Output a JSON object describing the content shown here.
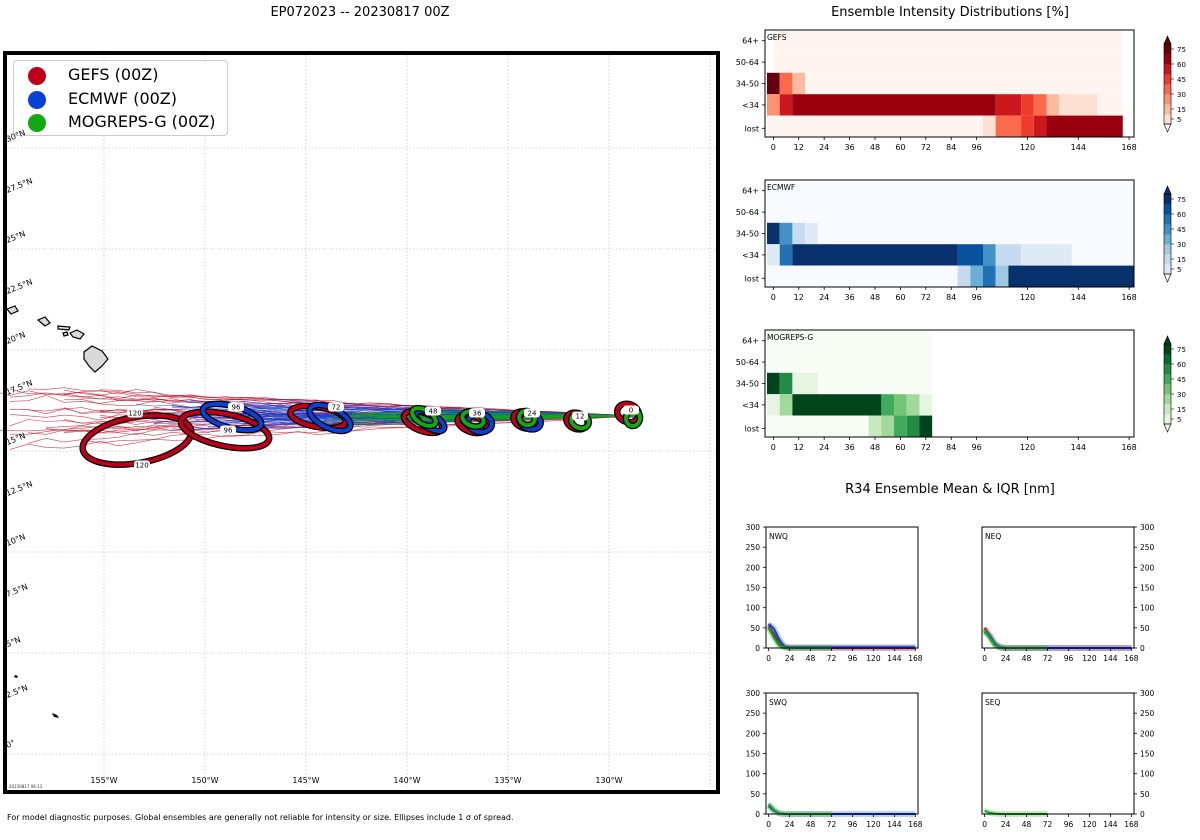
{
  "map": {
    "title": "EP072023 -- 20230817 00Z",
    "legend": [
      {
        "label": "GEFS (00Z)",
        "color": "#c0001a"
      },
      {
        "label": "ECMWF (00Z)",
        "color": "#0a3fd8"
      },
      {
        "label": "MOGREPS-G (00Z)",
        "color": "#12a812"
      }
    ],
    "lon_labels": [
      "155°W",
      "150°W",
      "145°W",
      "140°W",
      "135°W",
      "130°W"
    ],
    "lat_labels": [
      "30°N",
      "27.5°N",
      "25°N",
      "22.5°N",
      "20°N",
      "17.5°N",
      "15°N",
      "12.5°N",
      "10°N",
      "7.5°N",
      "5°N",
      "2.5°N",
      "0°"
    ],
    "stamp": "20230817 08:13",
    "footnote": "For model diagnostic purposes. Global ensembles are generally not reliable for intensity or size. Ellipses include 1 σ of spread.",
    "ellipse_labels": [
      "120",
      "120",
      "96",
      "96",
      "72",
      "48",
      "36",
      "24",
      "12",
      "0"
    ]
  },
  "intensity": {
    "title": "Ensemble Intensity Distributions [%]",
    "y_categories": [
      "64+",
      "50-64",
      "34-50",
      "<34",
      "lost"
    ],
    "x_ticks": [
      "0",
      "12",
      "24",
      "36",
      "48",
      "60",
      "72",
      "84",
      "96",
      "120",
      "144",
      "168"
    ],
    "colorbar_ticks": [
      "5",
      "15",
      "30",
      "45",
      "60",
      "75"
    ],
    "panels": [
      {
        "name": "GEFS",
        "palette": "red",
        "base": "#fff5f0",
        "colors": [
          "#fff5f0",
          "#fee0d2",
          "#fcbba1",
          "#fc9272",
          "#fb6a4a",
          "#ef3b2c",
          "#cb181d",
          "#99000d",
          "#67000d"
        ]
      },
      {
        "name": "ECMWF",
        "palette": "blue",
        "base": "#f7fbff",
        "colors": [
          "#f7fbff",
          "#deebf7",
          "#c6dbef",
          "#9ecae1",
          "#6baed6",
          "#4292c6",
          "#2171b5",
          "#08519c",
          "#08306b"
        ]
      },
      {
        "name": "MOGREPS-G",
        "palette": "green",
        "base": "#f7fcf5",
        "colors": [
          "#f7fcf5",
          "#e5f5e0",
          "#c7e9c0",
          "#a1d99b",
          "#74c476",
          "#41ab5d",
          "#238b45",
          "#006d2c",
          "#00441b"
        ]
      }
    ]
  },
  "r34": {
    "title": "R34 Ensemble Mean & IQR [nm]",
    "y_ticks": [
      "0",
      "50",
      "100",
      "150",
      "200",
      "250",
      "300"
    ],
    "x_ticks": [
      "0",
      "24",
      "48",
      "72",
      "96",
      "120",
      "144",
      "168"
    ],
    "panels": [
      "NWQ",
      "NEQ",
      "SWQ",
      "SEQ"
    ]
  },
  "chart_data": [
    {
      "type": "heatmap",
      "title": "GEFS",
      "x_label_ticks": [
        0,
        12,
        24,
        36,
        48,
        60,
        72,
        84,
        96,
        120,
        144,
        168
      ],
      "y_categories": [
        "64+",
        "50-64",
        "34-50",
        "<34",
        "lost"
      ],
      "cells": [
        {
          "row": "64+",
          "x0": 0,
          "x1": 165,
          "level": 0
        },
        {
          "row": "50-64",
          "x0": 0,
          "x1": 165,
          "level": 0
        },
        {
          "row": "34-50",
          "x0": -3,
          "x1": 3,
          "level": 8
        },
        {
          "row": "34-50",
          "x0": 3,
          "x1": 9,
          "level": 4
        },
        {
          "row": "34-50",
          "x0": 9,
          "x1": 15,
          "level": 2
        },
        {
          "row": "34-50",
          "x0": 15,
          "x1": 165,
          "level": 0
        },
        {
          "row": "<34",
          "x0": -3,
          "x1": 3,
          "level": 3
        },
        {
          "row": "<34",
          "x0": 3,
          "x1": 9,
          "level": 6
        },
        {
          "row": "<34",
          "x0": 9,
          "x1": 105,
          "level": 7
        },
        {
          "row": "<34",
          "x0": 105,
          "x1": 117,
          "level": 6
        },
        {
          "row": "<34",
          "x0": 117,
          "x1": 123,
          "level": 5
        },
        {
          "row": "<34",
          "x0": 123,
          "x1": 129,
          "level": 4
        },
        {
          "row": "<34",
          "x0": 129,
          "x1": 135,
          "level": 2
        },
        {
          "row": "<34",
          "x0": 135,
          "x1": 153,
          "level": 1
        },
        {
          "row": "<34",
          "x0": 153,
          "x1": 165,
          "level": 0
        },
        {
          "row": "lost",
          "x0": -3,
          "x1": 99,
          "level": 0
        },
        {
          "row": "lost",
          "x0": 99,
          "x1": 105,
          "level": 1
        },
        {
          "row": "lost",
          "x0": 105,
          "x1": 117,
          "level": 4
        },
        {
          "row": "lost",
          "x0": 117,
          "x1": 123,
          "level": 5
        },
        {
          "row": "lost",
          "x0": 123,
          "x1": 129,
          "level": 6
        },
        {
          "row": "lost",
          "x0": 129,
          "x1": 165,
          "level": 7
        }
      ]
    },
    {
      "type": "heatmap",
      "title": "ECMWF",
      "x_label_ticks": [
        0,
        12,
        24,
        36,
        48,
        60,
        72,
        84,
        96,
        120,
        144,
        168
      ],
      "y_categories": [
        "64+",
        "50-64",
        "34-50",
        "<34",
        "lost"
      ],
      "cells": [
        {
          "row": "64+",
          "x0": -3,
          "x1": 171,
          "level": 0
        },
        {
          "row": "50-64",
          "x0": -3,
          "x1": 171,
          "level": 0
        },
        {
          "row": "34-50",
          "x0": -3,
          "x1": 3,
          "level": 8
        },
        {
          "row": "34-50",
          "x0": 3,
          "x1": 9,
          "level": 5
        },
        {
          "row": "34-50",
          "x0": 9,
          "x1": 15,
          "level": 2
        },
        {
          "row": "34-50",
          "x0": 15,
          "x1": 21,
          "level": 1
        },
        {
          "row": "34-50",
          "x0": 21,
          "x1": 171,
          "level": 0
        },
        {
          "row": "<34",
          "x0": -3,
          "x1": 3,
          "level": 1
        },
        {
          "row": "<34",
          "x0": 3,
          "x1": 9,
          "level": 6
        },
        {
          "row": "<34",
          "x0": 9,
          "x1": 87,
          "level": 8
        },
        {
          "row": "<34",
          "x0": 87,
          "x1": 99,
          "level": 7
        },
        {
          "row": "<34",
          "x0": 99,
          "x1": 105,
          "level": 5
        },
        {
          "row": "<34",
          "x0": 105,
          "x1": 117,
          "level": 2
        },
        {
          "row": "<34",
          "x0": 117,
          "x1": 141,
          "level": 1
        },
        {
          "row": "<34",
          "x0": 141,
          "x1": 171,
          "level": 0
        },
        {
          "row": "lost",
          "x0": -3,
          "x1": 87,
          "level": 0
        },
        {
          "row": "lost",
          "x0": 87,
          "x1": 93,
          "level": 2
        },
        {
          "row": "lost",
          "x0": 93,
          "x1": 99,
          "level": 4
        },
        {
          "row": "lost",
          "x0": 99,
          "x1": 105,
          "level": 6
        },
        {
          "row": "lost",
          "x0": 105,
          "x1": 111,
          "level": 3
        },
        {
          "row": "lost",
          "x0": 111,
          "x1": 171,
          "level": 8
        }
      ]
    },
    {
      "type": "heatmap",
      "title": "MOGREPS-G",
      "x_label_ticks": [
        0,
        12,
        24,
        36,
        48,
        60,
        72,
        84,
        96,
        120,
        144,
        168
      ],
      "y_categories": [
        "64+",
        "50-64",
        "34-50",
        "<34",
        "lost"
      ],
      "cells": [
        {
          "row": "64+",
          "x0": -3,
          "x1": 75,
          "level": 0
        },
        {
          "row": "50-64",
          "x0": -3,
          "x1": 75,
          "level": 0
        },
        {
          "row": "34-50",
          "x0": -3,
          "x1": 3,
          "level": 8
        },
        {
          "row": "34-50",
          "x0": 3,
          "x1": 9,
          "level": 6
        },
        {
          "row": "34-50",
          "x0": 9,
          "x1": 21,
          "level": 1
        },
        {
          "row": "34-50",
          "x0": 21,
          "x1": 75,
          "level": 0
        },
        {
          "row": "<34",
          "x0": -3,
          "x1": 3,
          "level": 1
        },
        {
          "row": "<34",
          "x0": 3,
          "x1": 9,
          "level": 3
        },
        {
          "row": "<34",
          "x0": 9,
          "x1": 51,
          "level": 8
        },
        {
          "row": "<34",
          "x0": 51,
          "x1": 57,
          "level": 5
        },
        {
          "row": "<34",
          "x0": 57,
          "x1": 63,
          "level": 4
        },
        {
          "row": "<34",
          "x0": 63,
          "x1": 69,
          "level": 3
        },
        {
          "row": "<34",
          "x0": 69,
          "x1": 75,
          "level": 1
        },
        {
          "row": "lost",
          "x0": -3,
          "x1": 45,
          "level": 0
        },
        {
          "row": "lost",
          "x0": 45,
          "x1": 51,
          "level": 2
        },
        {
          "row": "lost",
          "x0": 51,
          "x1": 57,
          "level": 3
        },
        {
          "row": "lost",
          "x0": 57,
          "x1": 63,
          "level": 5
        },
        {
          "row": "lost",
          "x0": 63,
          "x1": 69,
          "level": 6
        },
        {
          "row": "lost",
          "x0": 69,
          "x1": 75,
          "level": 8
        }
      ]
    },
    {
      "type": "line",
      "title": "NWQ",
      "ylim": [
        0,
        300
      ],
      "xlim": [
        -3,
        171
      ],
      "series": [
        {
          "color": "#c0001a",
          "x": [
            0,
            6,
            12,
            18,
            24,
            36,
            48,
            168
          ],
          "y": [
            55,
            35,
            12,
            3,
            0,
            0,
            0,
            0
          ]
        },
        {
          "color": "#0a3fd8",
          "x": [
            0,
            6,
            12,
            18,
            24,
            48,
            72,
            168
          ],
          "y": [
            60,
            48,
            22,
            4,
            2,
            2,
            2,
            2
          ]
        },
        {
          "color": "#12a812",
          "x": [
            0,
            6,
            12,
            18,
            24,
            48,
            72
          ],
          "y": [
            50,
            25,
            6,
            1,
            0,
            0,
            0
          ]
        }
      ]
    },
    {
      "type": "line",
      "title": "NEQ",
      "ylim": [
        0,
        300
      ],
      "xlim": [
        -3,
        171
      ],
      "series": [
        {
          "color": "#c0001a",
          "x": [
            0,
            6,
            12,
            18,
            24,
            48,
            168
          ],
          "y": [
            50,
            30,
            10,
            2,
            0,
            0,
            0
          ]
        },
        {
          "color": "#0a3fd8",
          "x": [
            0,
            6,
            12,
            18,
            24,
            48,
            168
          ],
          "y": [
            40,
            30,
            10,
            2,
            0,
            0,
            0
          ]
        },
        {
          "color": "#12a812",
          "x": [
            0,
            6,
            12,
            18,
            24,
            48,
            72
          ],
          "y": [
            45,
            25,
            6,
            1,
            0,
            0,
            0
          ]
        }
      ]
    },
    {
      "type": "line",
      "title": "SWQ",
      "ylim": [
        0,
        300
      ],
      "xlim": [
        -3,
        171
      ],
      "series": [
        {
          "color": "#0a3fd8",
          "x": [
            0,
            6,
            12,
            18,
            24,
            168
          ],
          "y": [
            20,
            8,
            2,
            0,
            0,
            0
          ]
        },
        {
          "color": "#12a812",
          "x": [
            0,
            6,
            12,
            18,
            24,
            72
          ],
          "y": [
            25,
            10,
            2,
            0,
            0,
            0
          ]
        }
      ]
    },
    {
      "type": "line",
      "title": "SEQ",
      "ylim": [
        0,
        300
      ],
      "xlim": [
        -3,
        171
      ],
      "series": [
        {
          "color": "#12a812",
          "x": [
            0,
            6,
            12,
            18,
            24,
            72
          ],
          "y": [
            8,
            3,
            1,
            0,
            0,
            0
          ]
        }
      ]
    }
  ]
}
